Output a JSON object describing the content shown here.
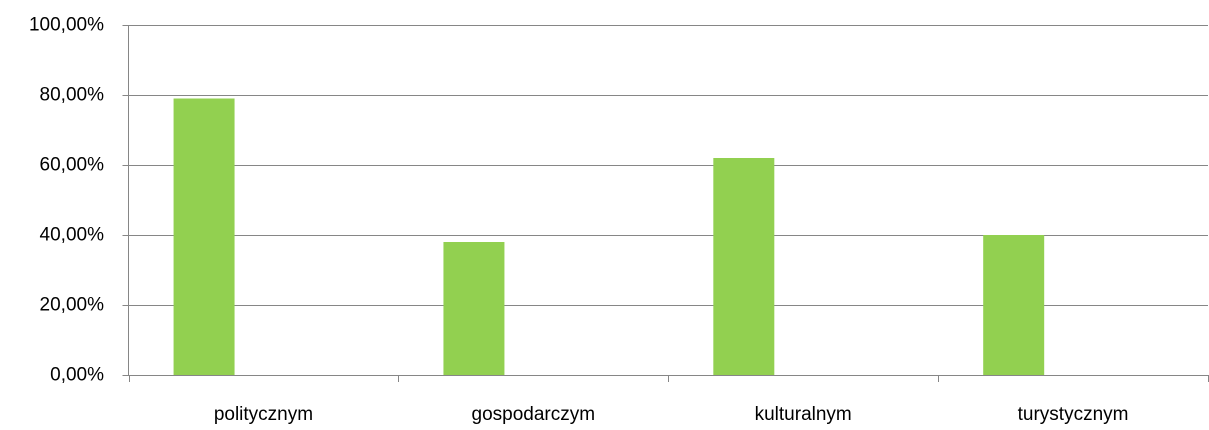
{
  "chart_data": {
    "type": "bar",
    "categories": [
      "politycznym",
      "gospodarczym",
      "kulturalnym",
      "turystycznym"
    ],
    "values": [
      79,
      38,
      62,
      40
    ],
    "color": "#92d050",
    "ylim": [
      0,
      100
    ],
    "yticks": [
      {
        "value": 0,
        "label": "0,00%"
      },
      {
        "value": 20,
        "label": "20,00%"
      },
      {
        "value": 40,
        "label": "40,00%"
      },
      {
        "value": 60,
        "label": "60,00%"
      },
      {
        "value": 80,
        "label": "80,00%"
      },
      {
        "value": 100,
        "label": "100,00%"
      }
    ],
    "grid": true
  }
}
